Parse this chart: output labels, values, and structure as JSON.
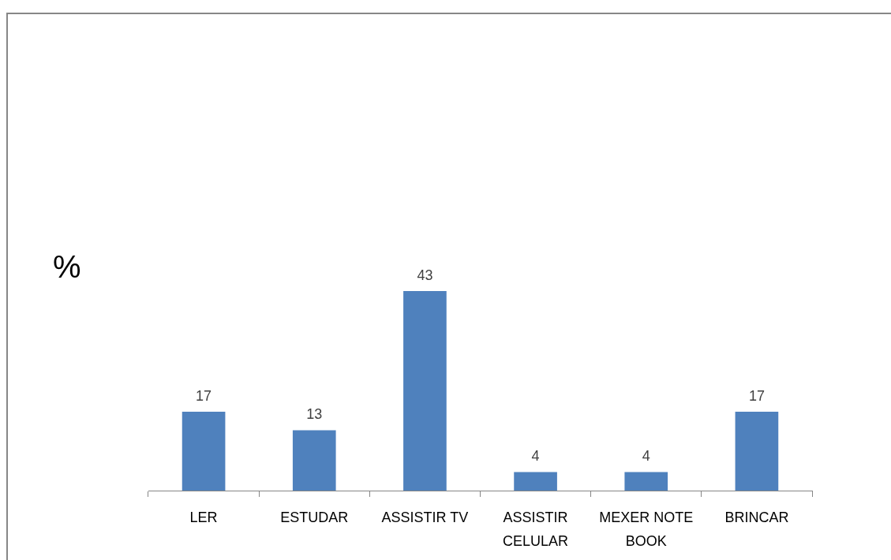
{
  "chart_data": {
    "type": "bar",
    "ylabel": "%",
    "categories": [
      "LER",
      "ESTUDAR",
      "ASSISTIR TV",
      "ASSISTIR CELULAR",
      "MEXER NOTE BOOK",
      "BRINCAR"
    ],
    "values": [
      17,
      13,
      43,
      4,
      4,
      17
    ],
    "color": "#4f81bd",
    "data_labels": true
  }
}
